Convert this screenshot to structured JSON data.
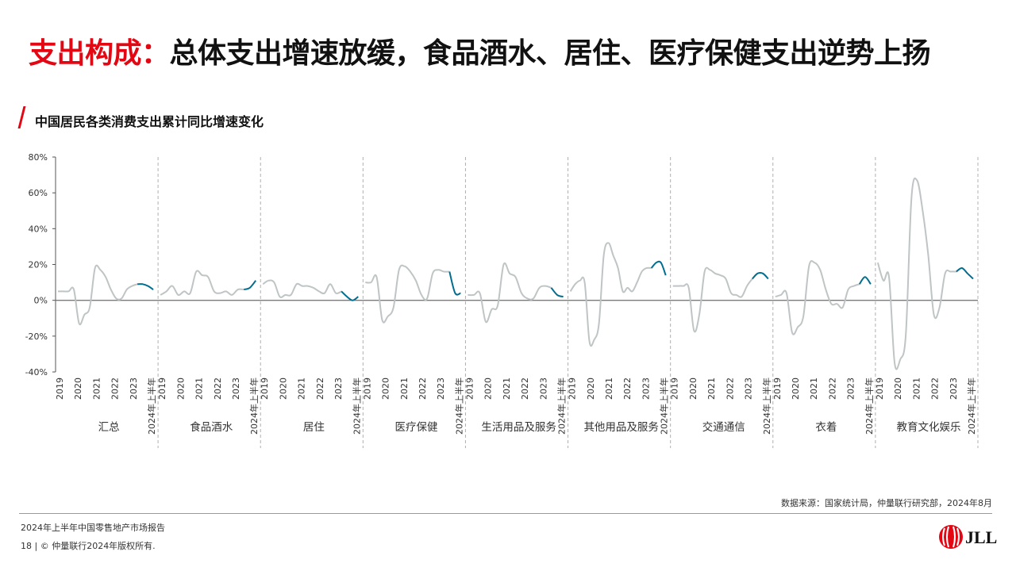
{
  "header": {
    "title_accent": "支出构成：",
    "title_rest": "总体支出增速放缓，食品酒水、居住、医疗保健支出逆势上扬",
    "subtitle": "中国居民各类消费支出累计同比增速变化"
  },
  "chart_data": {
    "type": "line",
    "y_unit": "%",
    "ylim": [
      -40,
      80
    ],
    "yticks": [
      "80%",
      "60%",
      "40%",
      "20%",
      "0%",
      "-20%",
      "-40%"
    ],
    "x_labels": [
      "2019",
      "2020",
      "2021",
      "2022",
      "2023",
      "2024年上半年"
    ],
    "grid": false,
    "colors": {
      "history": "#bfc4c5",
      "recent": "#006d8f",
      "zero_line": "#7a7a7a",
      "divider": "#b0b0b0"
    },
    "groups": [
      {
        "name": "汇总",
        "history": [
          5,
          5,
          5,
          6,
          -13,
          -8,
          -4,
          18,
          17,
          13,
          6,
          1,
          1,
          6,
          8,
          9
        ],
        "recent": [
          9,
          9,
          8,
          6
        ]
      },
      {
        "name": "食品酒水",
        "history": [
          3,
          5,
          8,
          3,
          5,
          4,
          16,
          14,
          13,
          5,
          4,
          5,
          3,
          6,
          6
        ],
        "recent": [
          6,
          7,
          11
        ]
      },
      {
        "name": "居住",
        "history": [
          9,
          11,
          10,
          2,
          3,
          3,
          9,
          8,
          8,
          7,
          5,
          4,
          9,
          4,
          5
        ],
        "recent": [
          5,
          2,
          0,
          2
        ]
      },
      {
        "name": "医疗保健",
        "history": [
          10,
          10,
          13,
          -11,
          -9,
          -4,
          17,
          19,
          16,
          11,
          3,
          1,
          15,
          17,
          16,
          16
        ],
        "recent": [
          16,
          4,
          4
        ]
      },
      {
        "name": "生活用品及服务",
        "history": [
          3,
          3,
          4,
          -12,
          -5,
          -3,
          20,
          15,
          13,
          4,
          1,
          1,
          7,
          8,
          7
        ],
        "recent": [
          7,
          3,
          2
        ]
      },
      {
        "name": "其他用品及服务",
        "history": [
          5,
          9,
          11,
          10,
          -23,
          -22,
          -13,
          25,
          32,
          25,
          18,
          5,
          7,
          5,
          10,
          16,
          18,
          18
        ],
        "recent": [
          18,
          21,
          21,
          14
        ]
      },
      {
        "name": "交通通信",
        "history": [
          8,
          8,
          8,
          7,
          -17,
          -8,
          16,
          17,
          15,
          14,
          12,
          4,
          3,
          2,
          8,
          12
        ],
        "recent": [
          12,
          15,
          15,
          12
        ]
      },
      {
        "name": "衣着",
        "history": [
          2,
          3,
          4,
          -18,
          -15,
          -9,
          19,
          21,
          17,
          6,
          -2,
          -2,
          -4,
          6,
          8,
          9
        ],
        "recent": [
          9,
          13,
          9
        ]
      },
      {
        "name": "教育文化娱乐",
        "history": [
          21,
          11,
          13,
          -35,
          -33,
          -19,
          57,
          67,
          50,
          25,
          -8,
          -4,
          15,
          16,
          16
        ],
        "recent": [
          16,
          18,
          15,
          12
        ]
      }
    ]
  },
  "footer": {
    "source": "数据来源：国家统计局，仲量联行研究部，2024年8月",
    "report": "2024年上半年中国零售地产市场报告",
    "copyright": "18 | © 仲量联行2024年版权所有.",
    "logo": "JLL"
  }
}
